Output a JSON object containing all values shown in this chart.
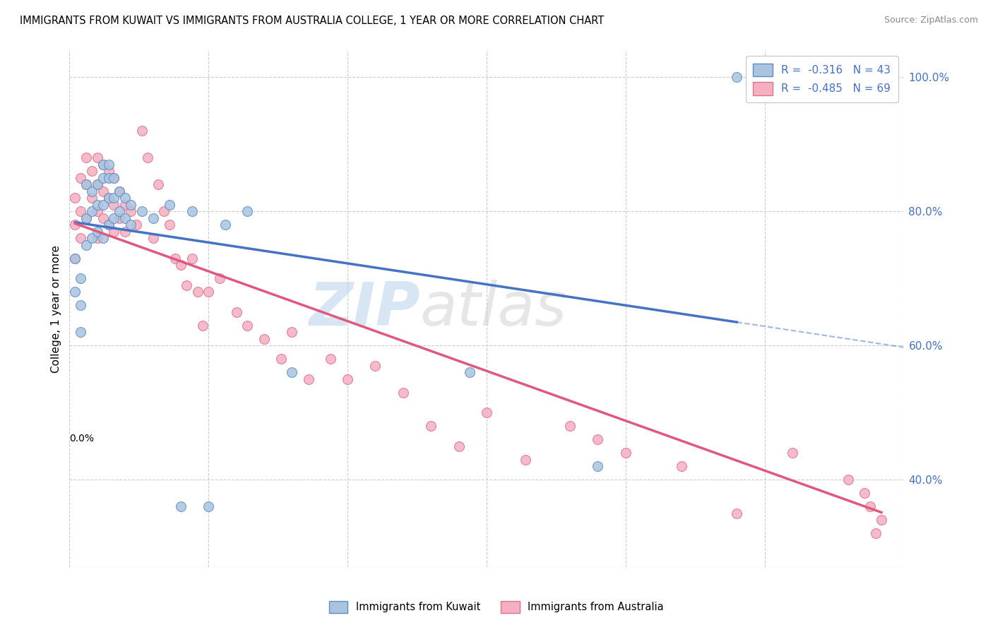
{
  "title": "IMMIGRANTS FROM KUWAIT VS IMMIGRANTS FROM AUSTRALIA COLLEGE, 1 YEAR OR MORE CORRELATION CHART",
  "source": "Source: ZipAtlas.com",
  "ylabel": "College, 1 year or more",
  "xlim": [
    0.0,
    0.15
  ],
  "ylim": [
    0.27,
    1.04
  ],
  "yticks": [
    0.4,
    0.6,
    0.8,
    1.0
  ],
  "ytick_labels_right": [
    "40.0%",
    "60.0%",
    "80.0%",
    "100.0%"
  ],
  "legend_r_kuwait": "-0.316",
  "legend_n_kuwait": "43",
  "legend_r_australia": "-0.485",
  "legend_n_australia": "69",
  "color_kuwait_fill": "#aac4e0",
  "color_kuwait_edge": "#5b8ec4",
  "color_australia_fill": "#f4b0c0",
  "color_australia_edge": "#e07090",
  "color_line_kuwait": "#4472c4",
  "color_line_australia": "#e05880",
  "watermark_zip": "ZIP",
  "watermark_atlas": "atlas",
  "background_color": "#ffffff",
  "grid_color": "#cccccc",
  "kw_x": [
    0.001,
    0.001,
    0.002,
    0.002,
    0.002,
    0.003,
    0.003,
    0.003,
    0.004,
    0.004,
    0.004,
    0.005,
    0.005,
    0.005,
    0.006,
    0.006,
    0.006,
    0.006,
    0.007,
    0.007,
    0.007,
    0.007,
    0.008,
    0.008,
    0.008,
    0.009,
    0.009,
    0.01,
    0.01,
    0.011,
    0.011,
    0.013,
    0.015,
    0.018,
    0.02,
    0.022,
    0.025,
    0.028,
    0.032,
    0.04,
    0.072,
    0.095,
    0.12
  ],
  "kw_y": [
    0.73,
    0.68,
    0.7,
    0.66,
    0.62,
    0.84,
    0.79,
    0.75,
    0.83,
    0.8,
    0.76,
    0.84,
    0.81,
    0.77,
    0.87,
    0.85,
    0.81,
    0.76,
    0.87,
    0.85,
    0.82,
    0.78,
    0.85,
    0.82,
    0.79,
    0.83,
    0.8,
    0.82,
    0.79,
    0.81,
    0.78,
    0.8,
    0.79,
    0.81,
    0.36,
    0.8,
    0.36,
    0.78,
    0.8,
    0.56,
    0.56,
    0.42,
    1.0
  ],
  "au_x": [
    0.001,
    0.001,
    0.001,
    0.002,
    0.002,
    0.002,
    0.003,
    0.003,
    0.003,
    0.004,
    0.004,
    0.005,
    0.005,
    0.005,
    0.005,
    0.006,
    0.006,
    0.006,
    0.007,
    0.007,
    0.007,
    0.008,
    0.008,
    0.008,
    0.009,
    0.009,
    0.01,
    0.01,
    0.011,
    0.012,
    0.013,
    0.014,
    0.015,
    0.016,
    0.017,
    0.018,
    0.019,
    0.02,
    0.021,
    0.022,
    0.023,
    0.024,
    0.025,
    0.027,
    0.03,
    0.032,
    0.035,
    0.038,
    0.04,
    0.043,
    0.047,
    0.05,
    0.055,
    0.06,
    0.065,
    0.07,
    0.075,
    0.082,
    0.09,
    0.095,
    0.1,
    0.11,
    0.12,
    0.13,
    0.14,
    0.143,
    0.144,
    0.145,
    0.146
  ],
  "au_y": [
    0.82,
    0.78,
    0.73,
    0.85,
    0.8,
    0.76,
    0.88,
    0.84,
    0.79,
    0.86,
    0.82,
    0.88,
    0.84,
    0.8,
    0.76,
    0.87,
    0.83,
    0.79,
    0.86,
    0.82,
    0.78,
    0.85,
    0.81,
    0.77,
    0.83,
    0.79,
    0.81,
    0.77,
    0.8,
    0.78,
    0.92,
    0.88,
    0.76,
    0.84,
    0.8,
    0.78,
    0.73,
    0.72,
    0.69,
    0.73,
    0.68,
    0.63,
    0.68,
    0.7,
    0.65,
    0.63,
    0.61,
    0.58,
    0.62,
    0.55,
    0.58,
    0.55,
    0.57,
    0.53,
    0.48,
    0.45,
    0.5,
    0.43,
    0.48,
    0.46,
    0.44,
    0.42,
    0.35,
    0.44,
    0.4,
    0.38,
    0.36,
    0.32,
    0.34
  ]
}
